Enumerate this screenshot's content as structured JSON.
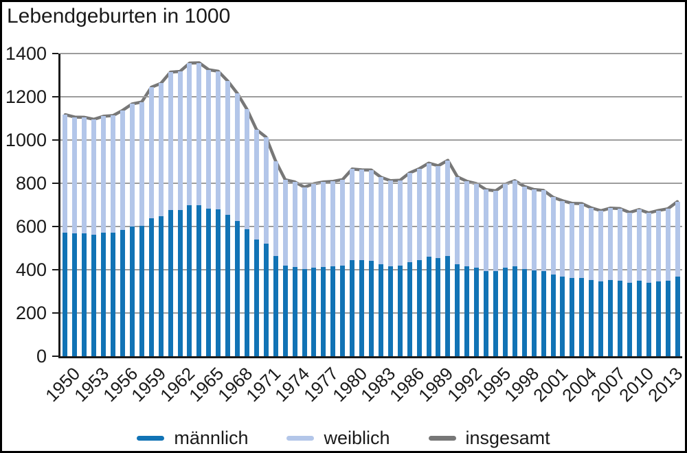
{
  "title": "Lebendgeburten in 1000",
  "colors": {
    "male_bar": "#1173b5",
    "female_bar": "#b3c6e9",
    "total_line": "#777777",
    "gridline": "#9c9c9c",
    "axis": "#1a1a1a",
    "text": "#1a1a1a",
    "background": "#ffffff"
  },
  "chart_data": {
    "type": "bar",
    "subtype": "stacked-bars-with-total-line",
    "title": "Lebendgeburten in 1000",
    "xlabel": "",
    "ylabel": "Lebendgeburten in 1000",
    "ylim": [
      0,
      1400
    ],
    "ytick_step": 200,
    "ytick_labels": [
      "0",
      "200",
      "400",
      "600",
      "800",
      "1000",
      "1200",
      "1400"
    ],
    "xtick_every": 3,
    "xtick_labels": [
      "1950",
      "1953",
      "1956",
      "1959",
      "1962",
      "1965",
      "1968",
      "1971",
      "1974",
      "1977",
      "1980",
      "1983",
      "1986",
      "1989",
      "1992",
      "1995",
      "1998",
      "2001",
      "2004",
      "2007",
      "2010",
      "2013"
    ],
    "grid": "horizontal",
    "legend_position": "bottom",
    "categories": [
      1950,
      1951,
      1952,
      1953,
      1954,
      1955,
      1956,
      1957,
      1958,
      1959,
      1960,
      1961,
      1962,
      1963,
      1964,
      1965,
      1966,
      1967,
      1968,
      1969,
      1970,
      1971,
      1972,
      1973,
      1974,
      1975,
      1976,
      1977,
      1978,
      1979,
      1980,
      1981,
      1982,
      1983,
      1984,
      1985,
      1986,
      1987,
      1988,
      1989,
      1990,
      1991,
      1992,
      1993,
      1994,
      1995,
      1996,
      1997,
      1998,
      1999,
      2000,
      2001,
      2002,
      2003,
      2004,
      2005,
      2006,
      2007,
      2008,
      2009,
      2010,
      2011,
      2012,
      2013,
      2014
    ],
    "series": [
      {
        "name": "männlich",
        "render": "bar",
        "stack": "births",
        "color": "#1173b5",
        "values": [
          573,
          568,
          568,
          563,
          571,
          572,
          585,
          600,
          604,
          639,
          649,
          676,
          677,
          697,
          697,
          682,
          678,
          654,
          625,
          588,
          539,
          521,
          463,
          419,
          414,
          402,
          410,
          414,
          415,
          420,
          445,
          443,
          442,
          425,
          417,
          418,
          436,
          446,
          459,
          453,
          465,
          426,
          415,
          410,
          395,
          393,
          409,
          417,
          403,
          396,
          394,
          377,
          369,
          363,
          362,
          352,
          345,
          351,
          350,
          341,
          348,
          340,
          346,
          350,
          367
        ]
      },
      {
        "name": "weiblich",
        "render": "bar",
        "stack": "births",
        "color": "#b3c6e9",
        "values": [
          544,
          538,
          537,
          533,
          539,
          541,
          552,
          567,
          572,
          605,
          613,
          638,
          640,
          659,
          660,
          643,
          640,
          618,
          590,
          554,
          509,
          492,
          439,
          397,
          392,
          380,
          388,
          392,
          394,
          397,
          421,
          419,
          419,
          403,
          395,
          396,
          412,
          421,
          434,
          428,
          441,
          404,
          394,
          388,
          375,
          372,
          387,
          395,
          382,
          375,
          373,
          358,
          350,
          344,
          344,
          334,
          328,
          334,
          333,
          324,
          330,
          323,
          328,
          332,
          348
        ]
      },
      {
        "name": "insgesamt",
        "render": "line",
        "color": "#777777",
        "values": [
          1117,
          1106,
          1105,
          1096,
          1110,
          1113,
          1137,
          1167,
          1176,
          1244,
          1262,
          1314,
          1317,
          1356,
          1357,
          1325,
          1318,
          1272,
          1215,
          1142,
          1048,
          1013,
          902,
          816,
          806,
          782,
          798,
          806,
          809,
          817,
          866,
          862,
          861,
          828,
          812,
          814,
          848,
          867,
          893,
          881,
          906,
          830,
          809,
          798,
          770,
          765,
          796,
          812,
          785,
          771,
          767,
          735,
          719,
          707,
          706,
          686,
          673,
          685,
          683,
          665,
          678,
          663,
          674,
          682,
          715
        ]
      }
    ]
  }
}
